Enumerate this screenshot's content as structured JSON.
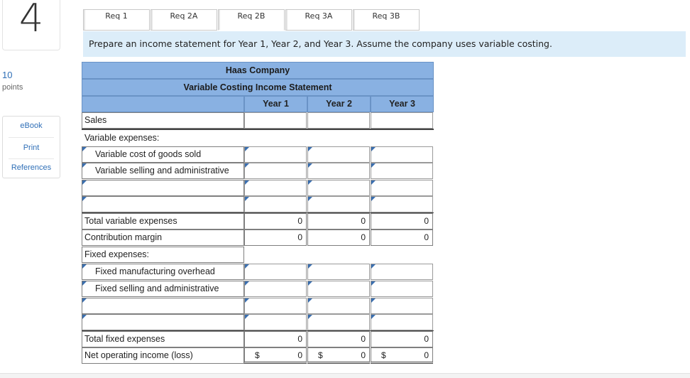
{
  "question": {
    "number": "4",
    "points_value": "10",
    "points_label": "points"
  },
  "side_menu": {
    "items": [
      "eBook",
      "Print",
      "References"
    ]
  },
  "tabs": [
    {
      "label": "Req 1"
    },
    {
      "label": "Req 2A"
    },
    {
      "label": "Req 2B",
      "active": true
    },
    {
      "label": "Req 3A"
    },
    {
      "label": "Req 3B"
    }
  ],
  "instruction": "Prepare an income statement for Year 1, Year 2, and Year 3. Assume the company uses variable costing.",
  "statement": {
    "company": "Haas Company",
    "title": "Variable Costing Income Statement",
    "columns": [
      "Year 1",
      "Year 2",
      "Year 3"
    ],
    "rows": {
      "sales": "Sales",
      "variable_expenses": "Variable expenses:",
      "variable_cogs": "Variable cost of goods sold",
      "variable_sga": "Variable selling and administrative",
      "total_variable": "Total variable expenses",
      "contribution_margin": "Contribution margin",
      "fixed_expenses": "Fixed expenses:",
      "fixed_moh": "Fixed manufacturing overhead",
      "fixed_sga": "Fixed selling and administrative",
      "total_fixed": "Total fixed expenses",
      "net_operating_income": "Net operating income (loss)"
    },
    "values": {
      "total_variable": [
        "0",
        "0",
        "0"
      ],
      "contribution_margin": [
        "0",
        "0",
        "0"
      ],
      "total_fixed": [
        "0",
        "0",
        "0"
      ],
      "net_operating_income": [
        "0",
        "0",
        "0"
      ]
    },
    "currency_symbol": "$"
  },
  "colors": {
    "header_blue": "#89b1e2",
    "banner_blue": "#dcedf9",
    "link_blue": "#2f6fb7"
  }
}
